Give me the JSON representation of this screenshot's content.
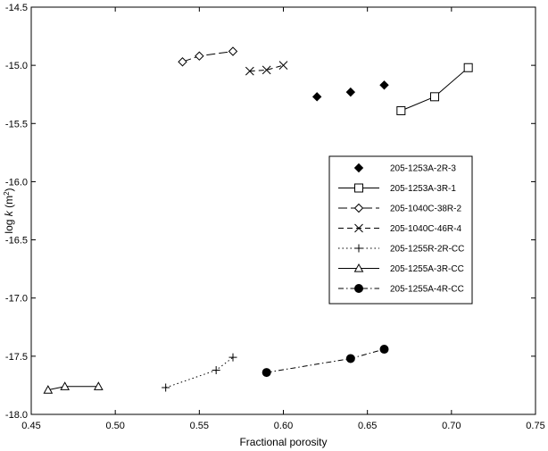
{
  "chart_data": {
    "type": "scatter",
    "title": "",
    "xlabel": "Fractional porosity",
    "ylabel_prefix": "log ",
    "ylabel_var": "k",
    "ylabel_suffix": " (m",
    "ylabel_sup": "2",
    "ylabel_close": ")",
    "xlim": [
      0.45,
      0.75
    ],
    "ylim": [
      -18.0,
      -14.5
    ],
    "x_ticks": [
      0.45,
      0.5,
      0.55,
      0.6,
      0.65,
      0.7,
      0.75
    ],
    "x_tick_labels": [
      "0.45",
      "0.50",
      "0.55",
      "0.60",
      "0.65",
      "0.70",
      "0.75"
    ],
    "y_ticks": [
      -14.5,
      -15.0,
      -15.5,
      -16.0,
      -16.5,
      -17.0,
      -17.5,
      -18.0
    ],
    "y_tick_labels": [
      "-14.5",
      "-15.0",
      "-15.5",
      "-16.0",
      "-16.5",
      "-17.0",
      "-17.5",
      "-18.0"
    ],
    "grid": false,
    "legend_position": "right",
    "series": [
      {
        "name": "205-1253A-2R-3",
        "marker": "diamond-filled",
        "line": "none",
        "x": [
          0.62,
          0.64,
          0.66
        ],
        "y": [
          -15.27,
          -15.23,
          -15.17
        ]
      },
      {
        "name": "205-1253A-3R-1",
        "marker": "square-open",
        "line": "solid",
        "x": [
          0.67,
          0.69,
          0.71
        ],
        "y": [
          -15.39,
          -15.27,
          -15.02
        ]
      },
      {
        "name": "205-1040C-38R-2",
        "marker": "diamond-open",
        "line": "long-dash",
        "x": [
          0.54,
          0.55,
          0.57
        ],
        "y": [
          -14.97,
          -14.92,
          -14.88
        ]
      },
      {
        "name": "205-1040C-46R-4",
        "marker": "x",
        "line": "dash",
        "x": [
          0.58,
          0.59,
          0.6
        ],
        "y": [
          -15.05,
          -15.04,
          -15.0
        ]
      },
      {
        "name": "205-1255R-2R-CC",
        "marker": "plus",
        "line": "dot",
        "x": [
          0.53,
          0.56,
          0.57
        ],
        "y": [
          -17.77,
          -17.62,
          -17.51
        ]
      },
      {
        "name": "205-1255A-3R-CC",
        "marker": "triangle-open",
        "line": "solid",
        "x": [
          0.46,
          0.47,
          0.49
        ],
        "y": [
          -17.79,
          -17.76,
          -17.76
        ]
      },
      {
        "name": "205-1255A-4R-CC",
        "marker": "circle-filled",
        "line": "dash-dot",
        "x": [
          0.59,
          0.64,
          0.66
        ],
        "y": [
          -17.64,
          -17.52,
          -17.44
        ]
      }
    ]
  }
}
